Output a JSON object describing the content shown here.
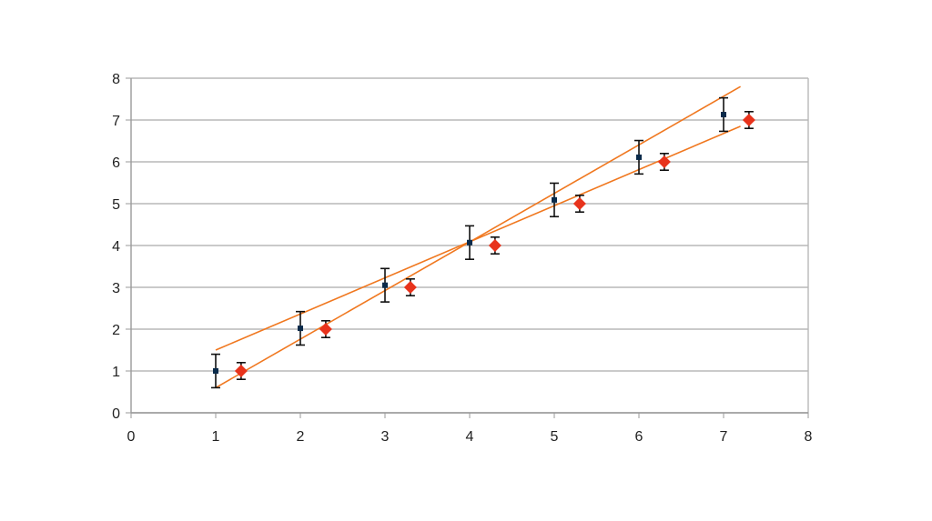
{
  "chart_data": {
    "type": "scatter",
    "xlim": [
      0,
      8
    ],
    "ylim": [
      0,
      8
    ],
    "x_ticks": [
      "0",
      "1",
      "2",
      "3",
      "4",
      "5",
      "6",
      "7",
      "8"
    ],
    "y_ticks": [
      "0",
      "1",
      "2",
      "3",
      "4",
      "5",
      "6",
      "7",
      "8"
    ],
    "grid": "horizontal",
    "legend": "none",
    "colors": {
      "grid": "#b8b8b8",
      "axis": "#9a9a9a",
      "trend": "#f07820",
      "series_a": "#0a2a4a",
      "series_b": "#e8331c",
      "error_bar": "#111111"
    },
    "series": [
      {
        "marker": "square",
        "x": [
          1,
          2,
          3,
          4,
          5,
          6,
          7
        ],
        "y": [
          1.0,
          2.02,
          3.05,
          4.07,
          5.09,
          6.11,
          7.13
        ],
        "error": [
          0.4,
          0.4,
          0.4,
          0.4,
          0.4,
          0.4,
          0.4
        ]
      },
      {
        "marker": "diamond",
        "x": [
          1.3,
          2.3,
          3.3,
          4.3,
          5.3,
          6.3,
          7.3
        ],
        "y": [
          1,
          2,
          3,
          4,
          5,
          6,
          7
        ],
        "error": [
          0.2,
          0.2,
          0.2,
          0.2,
          0.2,
          0.2,
          0.2
        ]
      }
    ],
    "trendlines": [
      {
        "x": [
          1,
          7.2
        ],
        "y": [
          1.5,
          6.85
        ]
      },
      {
        "x": [
          1,
          7.2
        ],
        "y": [
          0.6,
          7.8
        ]
      }
    ]
  }
}
